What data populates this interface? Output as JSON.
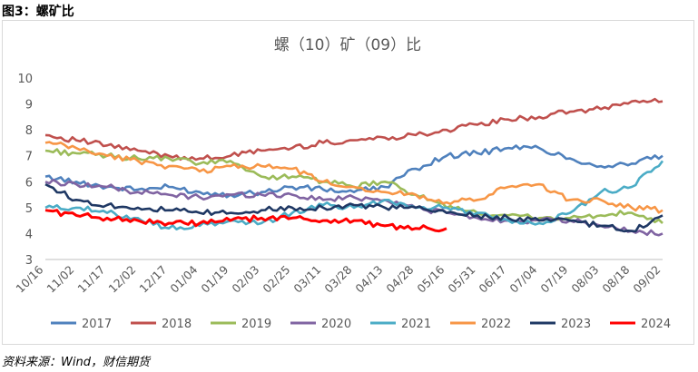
{
  "figure_label": "图3：螺矿比",
  "source_note": "资料来源：Wind，财信期货",
  "chart_data": {
    "type": "line",
    "title": "螺（10）矿（09）比",
    "xlabel": "",
    "ylabel": "",
    "ylim": [
      3,
      10
    ],
    "yticks": [
      3,
      4,
      5,
      6,
      7,
      8,
      9,
      10
    ],
    "grid": false,
    "legend_position": "bottom",
    "categories": [
      "10/16",
      "11/02",
      "11/17",
      "12/02",
      "12/17",
      "01/04",
      "01/19",
      "02/03",
      "02/25",
      "03/11",
      "03/28",
      "04/13",
      "04/28",
      "05/16",
      "05/31",
      "06/17",
      "07/04",
      "07/19",
      "08/03",
      "08/18",
      "09/02"
    ],
    "series": [
      {
        "name": "2017",
        "color": "#4f81bd",
        "values": [
          6.2,
          6.0,
          5.8,
          5.7,
          5.8,
          5.6,
          5.5,
          5.6,
          5.8,
          5.7,
          5.6,
          5.8,
          6.5,
          7.0,
          7.1,
          7.3,
          7.3,
          6.9,
          6.6,
          6.7,
          7.0
        ]
      },
      {
        "name": "2018",
        "color": "#c0504d",
        "values": [
          7.8,
          7.6,
          7.4,
          7.2,
          7.0,
          6.9,
          7.0,
          7.2,
          7.3,
          7.5,
          7.6,
          7.7,
          7.8,
          8.0,
          8.2,
          8.4,
          8.5,
          8.7,
          8.8,
          9.1,
          9.1
        ]
      },
      {
        "name": "2019",
        "color": "#9bbb59",
        "values": [
          7.2,
          7.1,
          7.0,
          6.9,
          6.9,
          6.7,
          6.8,
          6.2,
          6.2,
          6.0,
          5.8,
          6.0,
          5.5,
          5.0,
          4.8,
          4.7,
          4.6,
          4.6,
          4.7,
          4.8,
          4.4
        ]
      },
      {
        "name": "2020",
        "color": "#8064a2",
        "values": [
          6.0,
          5.9,
          5.8,
          5.6,
          5.5,
          5.4,
          5.5,
          5.5,
          5.5,
          5.3,
          5.4,
          5.3,
          5.0,
          4.8,
          4.6,
          4.5,
          4.5,
          4.5,
          4.3,
          4.1,
          4.0
        ]
      },
      {
        "name": "2021",
        "color": "#4bacc6",
        "values": [
          5.0,
          5.0,
          4.8,
          4.6,
          4.2,
          4.3,
          4.5,
          4.4,
          4.8,
          5.1,
          5.0,
          5.3,
          5.0,
          5.0,
          4.8,
          4.5,
          4.4,
          4.8,
          5.6,
          5.8,
          6.8
        ]
      },
      {
        "name": "2022",
        "color": "#f79646",
        "values": [
          7.5,
          7.3,
          7.0,
          6.8,
          6.6,
          6.4,
          6.6,
          6.6,
          6.5,
          6.0,
          5.8,
          5.6,
          5.5,
          5.2,
          5.3,
          5.8,
          5.9,
          5.3,
          5.3,
          5.0,
          4.9
        ]
      },
      {
        "name": "2023",
        "color": "#1f3864",
        "values": [
          5.9,
          5.3,
          5.1,
          5.0,
          4.9,
          4.8,
          4.8,
          4.9,
          5.0,
          5.0,
          5.1,
          5.0,
          5.0,
          4.8,
          4.7,
          4.6,
          4.5,
          4.5,
          4.3,
          4.1,
          4.7
        ]
      },
      {
        "name": "2024",
        "color": "#ff0000",
        "values": [
          4.9,
          4.7,
          4.6,
          4.5,
          4.4,
          4.4,
          4.5,
          4.6,
          4.6,
          4.5,
          4.5,
          4.3,
          4.2,
          4.2,
          null,
          null,
          null,
          null,
          null,
          null,
          null
        ]
      }
    ]
  }
}
